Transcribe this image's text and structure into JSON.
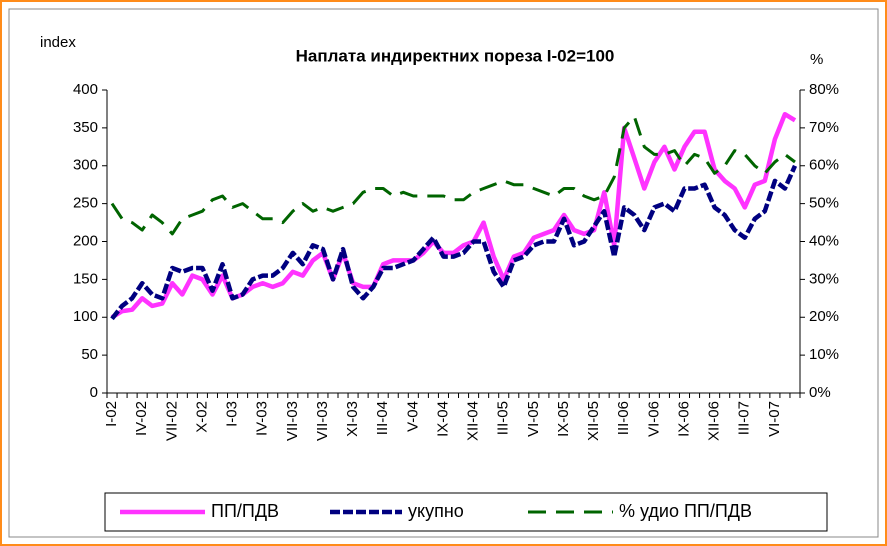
{
  "chart_data": {
    "type": "line",
    "title": "Наплата индиректних пореза I-02=100",
    "y_label": "index",
    "y2_label": "%",
    "categories": [
      "I-02",
      null,
      null,
      "IV-02",
      null,
      null,
      "VII-02",
      null,
      null,
      "X-02",
      null,
      null,
      "I-03",
      null,
      null,
      "IV-03",
      null,
      null,
      "VII-03",
      null,
      null,
      "VII-03",
      null,
      null,
      "XI-03",
      null,
      null,
      "III-04",
      null,
      null,
      "V-04",
      null,
      null,
      "IX-04",
      null,
      null,
      "XII-04",
      null,
      null,
      "III-05",
      null,
      null,
      "VI-05",
      null,
      null,
      "IX-05",
      null,
      null,
      "XII-05",
      null,
      null,
      "III-06",
      null,
      null,
      "VI-06",
      null,
      null,
      "IX-06",
      null,
      null,
      "XII-06",
      null,
      null,
      "III-07",
      null,
      null,
      "VI-07",
      null,
      null
    ],
    "ylim": [
      0,
      400
    ],
    "yticks": [
      0,
      50,
      100,
      150,
      200,
      250,
      300,
      350,
      400
    ],
    "y2lim": [
      0,
      80
    ],
    "y2ticks": [
      {
        "value": 0,
        "label": "0%"
      },
      {
        "value": 10,
        "label": "10%"
      },
      {
        "value": 20,
        "label": "20%"
      },
      {
        "value": 30,
        "label": "30%"
      },
      {
        "value": 40,
        "label": "40%"
      },
      {
        "value": 50,
        "label": "50%"
      },
      {
        "value": 60,
        "label": "60%"
      },
      {
        "value": 70,
        "label": "70%"
      },
      {
        "value": 80,
        "label": "80%"
      }
    ],
    "legend": "bottom",
    "series": [
      {
        "name": "ПП/ПДВ",
        "color": "#ff33ff",
        "values": [
          100,
          108,
          110,
          125,
          115,
          118,
          145,
          130,
          155,
          150,
          130,
          155,
          125,
          130,
          140,
          145,
          140,
          145,
          160,
          155,
          175,
          185,
          150,
          185,
          145,
          140,
          140,
          170,
          175,
          175,
          175,
          185,
          200,
          185,
          185,
          195,
          200,
          225,
          180,
          150,
          180,
          185,
          205,
          210,
          215,
          235,
          215,
          210,
          215,
          265,
          195,
          350,
          310,
          270,
          305,
          325,
          295,
          325,
          345,
          345,
          295,
          280,
          270,
          245,
          275,
          280,
          335,
          368,
          360
        ]
      },
      {
        "name": "укупно",
        "color": "#000080",
        "values": [
          98,
          115,
          125,
          145,
          130,
          125,
          165,
          160,
          165,
          165,
          135,
          170,
          125,
          130,
          150,
          155,
          155,
          165,
          185,
          170,
          195,
          190,
          150,
          190,
          140,
          125,
          140,
          165,
          165,
          170,
          175,
          190,
          205,
          180,
          180,
          185,
          200,
          200,
          160,
          140,
          175,
          180,
          195,
          200,
          200,
          230,
          195,
          200,
          220,
          240,
          180,
          245,
          235,
          215,
          245,
          250,
          240,
          270,
          270,
          275,
          245,
          235,
          215,
          205,
          230,
          240,
          280,
          270,
          300
        ]
      },
      {
        "name": "% удио ПП/ПДВ",
        "color": "#006400",
        "axis": "y2",
        "values": [
          50,
          46,
          45,
          43,
          47,
          45,
          42,
          46,
          47,
          48,
          51,
          52,
          49,
          50,
          48,
          46,
          46,
          45,
          48,
          50,
          48,
          49,
          48,
          49,
          50,
          53,
          54,
          54,
          52,
          53,
          52,
          52,
          52,
          52,
          51,
          51,
          53,
          54,
          55,
          56,
          55,
          55,
          54,
          53,
          52,
          54,
          54,
          52,
          51,
          52,
          57,
          70,
          73,
          65,
          63,
          63,
          64,
          60,
          63,
          62,
          58,
          60,
          64,
          63,
          60,
          58,
          61,
          63,
          61
        ]
      }
    ]
  }
}
